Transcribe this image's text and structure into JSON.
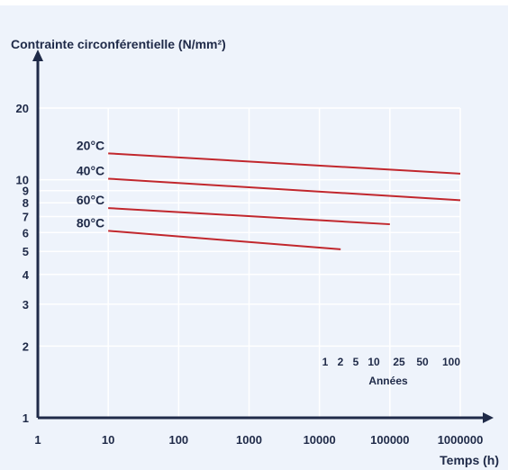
{
  "chart_data": {
    "type": "line",
    "ylabel": "Contrainte circonférentielle (N/mm²)",
    "xlabel": "Temps (h)",
    "x_scale": "log",
    "y_scale": "log",
    "xlim": [
      1,
      1000000
    ],
    "ylim": [
      1,
      20
    ],
    "grid": true,
    "x_ticks": [
      "1",
      "10",
      "100",
      "1000",
      "10000",
      "100000",
      "1000000"
    ],
    "y_ticks": [
      "1",
      "2",
      "3",
      "4",
      "5",
      "6",
      "7",
      "8",
      "9",
      "10",
      "20"
    ],
    "series": [
      {
        "name": "20°C",
        "points": [
          [
            10,
            12.9
          ],
          [
            1000000,
            10.6
          ]
        ]
      },
      {
        "name": "40°C",
        "points": [
          [
            10,
            10.1
          ],
          [
            1000000,
            8.2
          ]
        ]
      },
      {
        "name": "60°C",
        "points": [
          [
            10,
            7.6
          ],
          [
            100000,
            6.5
          ]
        ]
      },
      {
        "name": "80°C",
        "points": [
          [
            10,
            6.1
          ],
          [
            20000,
            5.1
          ]
        ]
      }
    ],
    "years_axis": {
      "label": "Années",
      "ticks": [
        "1",
        "2",
        "5",
        "10",
        "25",
        "50",
        "100"
      ]
    },
    "colors": {
      "line": "#c1272d",
      "axis": "#1f2a48",
      "grid": "#ffffff"
    }
  }
}
